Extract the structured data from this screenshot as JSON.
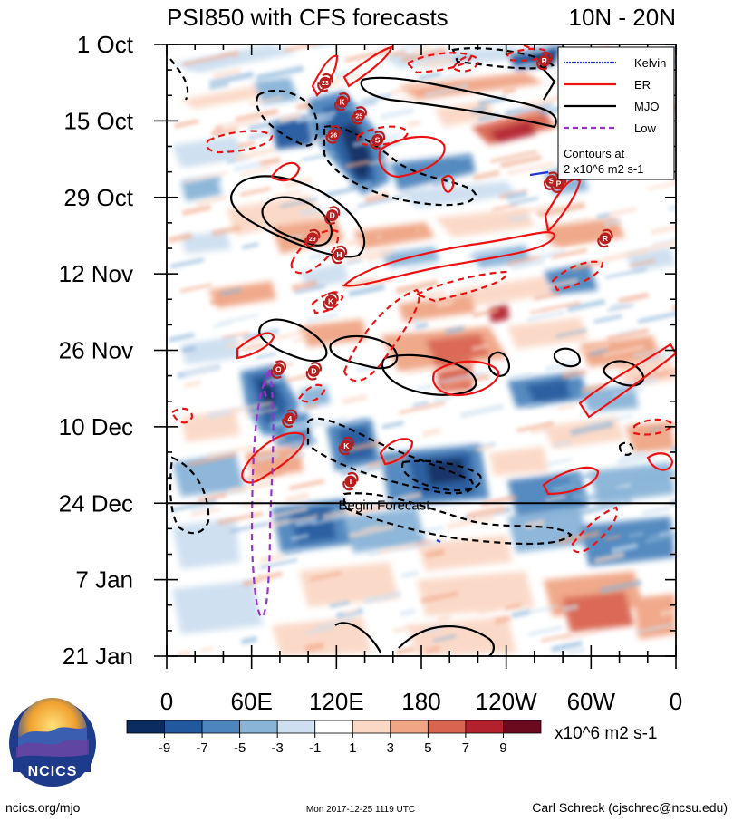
{
  "title": "PSI850 with CFS forecasts",
  "lat_band": "10N - 20N",
  "footer": {
    "left": "ncics.org/mjo",
    "center": "Mon 2017-12-25 1119 UTC",
    "right": "Carl Schreck (cjschrec@ncsu.edu)",
    "logo_text": "NCICS"
  },
  "colors": {
    "kelvin": "#2233dd",
    "er": "#ee1111",
    "mjo": "#000000",
    "low": "#9933cc",
    "storm_marker": "#b81e1e"
  },
  "chart_data": {
    "type": "heatmap",
    "title": "PSI850 with CFS forecasts",
    "subtitle": "10N - 20N",
    "x_axis": {
      "range_deg": [
        0,
        360
      ],
      "tick_deg": [
        0,
        60,
        120,
        180,
        240,
        300,
        360
      ],
      "tick_labels": [
        "0",
        "60E",
        "120E",
        "180",
        "120W",
        "60W",
        "0"
      ]
    },
    "y_axis": {
      "range_days": [
        0,
        112
      ],
      "tick_days": [
        0,
        14,
        28,
        42,
        56,
        70,
        84,
        98,
        112
      ],
      "tick_labels": [
        "1 Oct",
        "15 Oct",
        "29 Oct",
        "12 Nov",
        "26 Nov",
        "10 Dec",
        "24 Dec",
        "7 Jan",
        "21 Jan"
      ]
    },
    "forecast_start_day": 84,
    "forecast_label": "Begin Forecast",
    "colorbar": {
      "levels": [
        -9,
        -7,
        -5,
        -3,
        -1,
        1,
        3,
        5,
        7,
        9
      ],
      "colors": [
        "#0b2c5e",
        "#22589e",
        "#4d85be",
        "#89b4d8",
        "#cddff0",
        "#ffffff",
        "#fbd8c6",
        "#f0a585",
        "#d9644f",
        "#b3202e",
        "#6b0a1e"
      ],
      "units": "x10^6 m2 s-1"
    },
    "legend": {
      "entries": [
        {
          "name": "Kelvin",
          "style": "solid",
          "color": "#2233dd"
        },
        {
          "name": "ER",
          "style": "solid",
          "color": "#ee1111"
        },
        {
          "name": "MJO",
          "style": "solid",
          "color": "#000000"
        },
        {
          "name": "Low",
          "style": "dashed",
          "color": "#9933cc"
        }
      ],
      "note": [
        "Contours at",
        "2 x10^6 m2 s-1"
      ],
      "placement": "top-right"
    },
    "storms": [
      {
        "label": "R",
        "lon": 267,
        "day": 3
      },
      {
        "label": "23",
        "lon": 112,
        "day": 7
      },
      {
        "label": "K",
        "lon": 124,
        "day": 10.5
      },
      {
        "label": "25",
        "lon": 136,
        "day": 13
      },
      {
        "label": "26",
        "lon": 118,
        "day": 16.5
      },
      {
        "label": "S",
        "lon": 149,
        "day": 17.5
      },
      {
        "label": "S",
        "lon": 272,
        "day": 25
      },
      {
        "label": "P",
        "lon": 277,
        "day": 25.5
      },
      {
        "label": "D",
        "lon": 117,
        "day": 31.3
      },
      {
        "label": "R",
        "lon": 310,
        "day": 35.5
      },
      {
        "label": "29",
        "lon": 103,
        "day": 35.5
      },
      {
        "label": "H",
        "lon": 122,
        "day": 38.5
      },
      {
        "label": "K",
        "lon": 116,
        "day": 47
      },
      {
        "label": "O",
        "lon": 79,
        "day": 59.5
      },
      {
        "label": "D",
        "lon": 104,
        "day": 59.8
      },
      {
        "label": "4",
        "lon": 87,
        "day": 68.5
      },
      {
        "label": "K",
        "lon": 127,
        "day": 73.5
      },
      {
        "label": "T",
        "lon": 130,
        "day": 80
      }
    ]
  }
}
